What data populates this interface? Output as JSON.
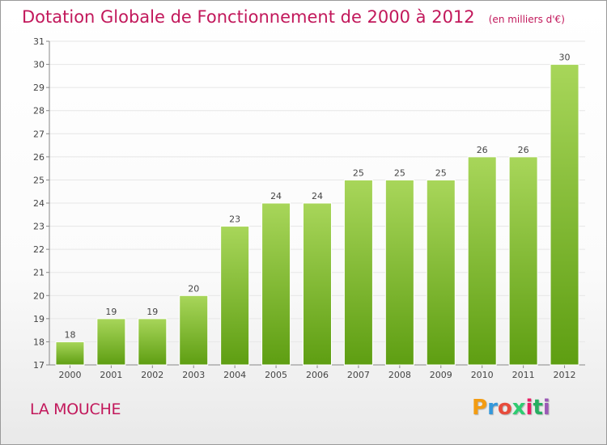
{
  "header": {
    "title": "Dotation Globale de Fonctionnement de 2000 à 2012",
    "unit": "(en milliers d'€)"
  },
  "footer": {
    "commune": "LA MOUCHE",
    "logo_text": "Proxiti",
    "logo_colors": [
      "#f39c12",
      "#3498db",
      "#e74c3c",
      "#2ecc71",
      "#e91e63",
      "#27ae60",
      "#9b59b6"
    ]
  },
  "colors": {
    "bar_top": "#a8d65a",
    "bar_bottom": "#5e9e12",
    "title": "#c2185b",
    "grid": "#e6e6e6"
  },
  "chart_data": {
    "type": "bar",
    "categories": [
      "2000",
      "2001",
      "2002",
      "2003",
      "2004",
      "2005",
      "2006",
      "2007",
      "2008",
      "2009",
      "2010",
      "2011",
      "2012"
    ],
    "values": [
      18,
      19,
      19,
      20,
      23,
      24,
      24,
      25,
      25,
      25,
      26,
      26,
      30
    ],
    "data_labels": [
      "18",
      "19",
      "19",
      "20",
      "23",
      "24",
      "24",
      "25",
      "25",
      "25",
      "26",
      "26",
      "30"
    ],
    "title": "Dotation Globale de Fonctionnement de 2000 à 2012",
    "xlabel": "",
    "ylabel": "",
    "ylim": [
      17,
      31
    ],
    "yticks": [
      "17",
      "18",
      "19",
      "20",
      "21",
      "22",
      "23",
      "24",
      "25",
      "26",
      "27",
      "28",
      "29",
      "30",
      "31"
    ],
    "grid": true,
    "legend": "none"
  }
}
